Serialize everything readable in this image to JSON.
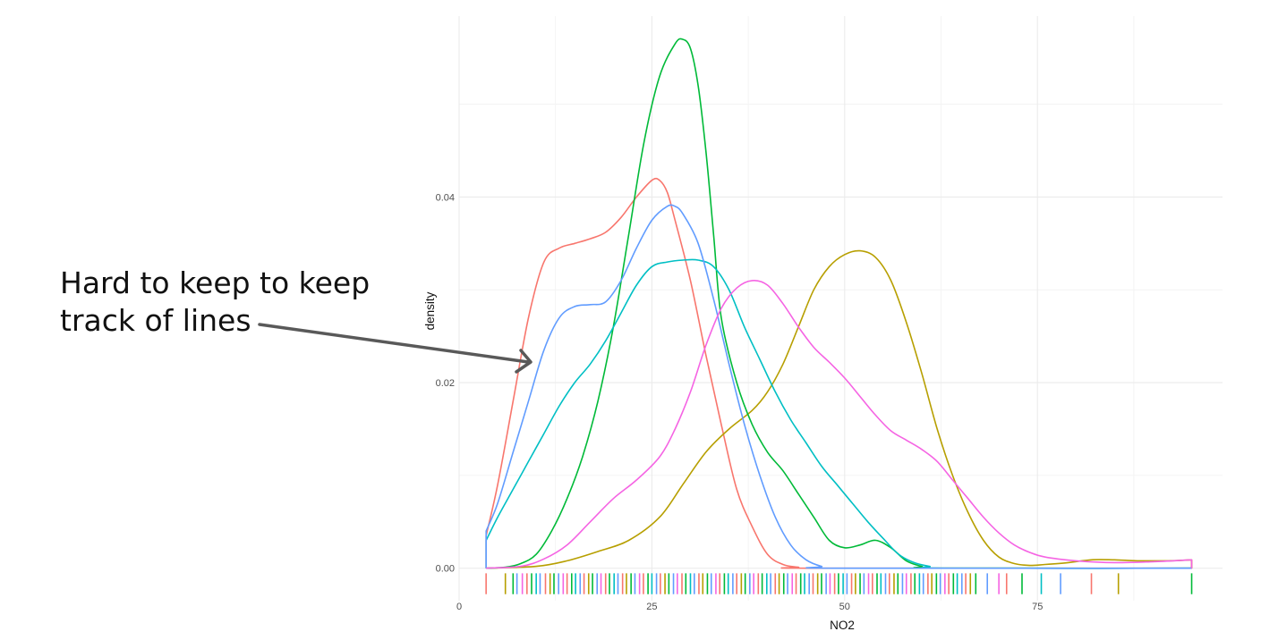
{
  "annotation": {
    "lines": [
      "Hard to keep to keep",
      "track of lines"
    ],
    "arrow_color": "#595959"
  },
  "chart_data": {
    "type": "line",
    "kind": "density",
    "xlabel": "NO2",
    "ylabel": "density",
    "xlim": [
      0,
      99
    ],
    "ylim": [
      -0.0035,
      0.0595
    ],
    "x_ticks": [
      0,
      25,
      50,
      75
    ],
    "x_tick_labels": [
      "0",
      "25",
      "50",
      "75"
    ],
    "y_ticks": [
      0.0,
      0.02,
      0.04
    ],
    "y_tick_labels": [
      "0.00",
      "0.02",
      "0.04"
    ],
    "grid": true,
    "legend": "none",
    "rug": true,
    "series": [
      {
        "color": "#F8766D",
        "points": [
          [
            3.5,
            0
          ],
          [
            3.5,
            0.0035
          ],
          [
            5,
            0.009
          ],
          [
            7,
            0.018
          ],
          [
            9,
            0.027
          ],
          [
            11,
            0.033
          ],
          [
            13,
            0.0345
          ],
          [
            15,
            0.035
          ],
          [
            17,
            0.0355
          ],
          [
            19,
            0.0362
          ],
          [
            21,
            0.0378
          ],
          [
            23,
            0.04
          ],
          [
            25,
            0.0418
          ],
          [
            26,
            0.0418
          ],
          [
            27,
            0.0405
          ],
          [
            28,
            0.0375
          ],
          [
            30,
            0.031
          ],
          [
            32,
            0.023
          ],
          [
            34,
            0.0155
          ],
          [
            36,
            0.0085
          ],
          [
            38,
            0.0045
          ],
          [
            40,
            0.0015
          ],
          [
            42,
            0.0004
          ],
          [
            44,
            0.0001
          ],
          [
            46,
            0
          ],
          [
            95,
            0
          ],
          [
            95,
            0.0008
          ]
        ]
      },
      {
        "color": "#B79F00",
        "points": [
          [
            3.5,
            0
          ],
          [
            10,
            0.0002
          ],
          [
            14,
            0.0008
          ],
          [
            18,
            0.0018
          ],
          [
            22,
            0.003
          ],
          [
            26,
            0.0055
          ],
          [
            29,
            0.009
          ],
          [
            32,
            0.0125
          ],
          [
            35,
            0.015
          ],
          [
            38,
            0.017
          ],
          [
            40,
            0.019
          ],
          [
            42,
            0.022
          ],
          [
            44,
            0.026
          ],
          [
            46,
            0.03
          ],
          [
            48,
            0.0325
          ],
          [
            50,
            0.0338
          ],
          [
            52,
            0.0342
          ],
          [
            54,
            0.0335
          ],
          [
            56,
            0.031
          ],
          [
            58,
            0.0265
          ],
          [
            60,
            0.021
          ],
          [
            62,
            0.015
          ],
          [
            64,
            0.01
          ],
          [
            66,
            0.006
          ],
          [
            68,
            0.003
          ],
          [
            70,
            0.0012
          ],
          [
            72,
            0.0005
          ],
          [
            74,
            0.0003
          ],
          [
            76,
            0.0004
          ],
          [
            79,
            0.0006
          ],
          [
            82,
            0.0009
          ],
          [
            85,
            0.0009
          ],
          [
            88,
            0.0008
          ],
          [
            92,
            0.0008
          ],
          [
            95,
            0.0009
          ],
          [
            95,
            0
          ]
        ]
      },
      {
        "color": "#00BA38",
        "points": [
          [
            3.5,
            0
          ],
          [
            6,
            0.0001
          ],
          [
            8,
            0.0005
          ],
          [
            10,
            0.0015
          ],
          [
            12,
            0.004
          ],
          [
            14,
            0.0075
          ],
          [
            16,
            0.012
          ],
          [
            18,
            0.018
          ],
          [
            20,
            0.026
          ],
          [
            22,
            0.036
          ],
          [
            24,
            0.046
          ],
          [
            26,
            0.053
          ],
          [
            28,
            0.0565
          ],
          [
            29,
            0.057
          ],
          [
            30,
            0.056
          ],
          [
            31,
            0.052
          ],
          [
            32,
            0.045
          ],
          [
            33,
            0.036
          ],
          [
            34,
            0.027
          ],
          [
            36,
            0.02
          ],
          [
            38,
            0.0155
          ],
          [
            40,
            0.0125
          ],
          [
            42,
            0.0105
          ],
          [
            44,
            0.008
          ],
          [
            46,
            0.0055
          ],
          [
            48,
            0.003
          ],
          [
            50,
            0.0022
          ],
          [
            52,
            0.0025
          ],
          [
            54,
            0.003
          ],
          [
            56,
            0.0022
          ],
          [
            58,
            0.0008
          ],
          [
            60,
            0.0002
          ],
          [
            62,
            0
          ],
          [
            95,
            0
          ]
        ]
      },
      {
        "color": "#00BFC4",
        "points": [
          [
            3.5,
            0
          ],
          [
            3.5,
            0.003
          ],
          [
            5,
            0.0055
          ],
          [
            7,
            0.0085
          ],
          [
            9,
            0.0115
          ],
          [
            11,
            0.0145
          ],
          [
            13,
            0.0175
          ],
          [
            15,
            0.02
          ],
          [
            17,
            0.022
          ],
          [
            19,
            0.0245
          ],
          [
            21,
            0.0275
          ],
          [
            23,
            0.0305
          ],
          [
            25,
            0.0325
          ],
          [
            27,
            0.033
          ],
          [
            29,
            0.0332
          ],
          [
            31,
            0.0332
          ],
          [
            33,
            0.0325
          ],
          [
            35,
            0.03
          ],
          [
            37,
            0.026
          ],
          [
            39,
            0.0225
          ],
          [
            41,
            0.019
          ],
          [
            43,
            0.016
          ],
          [
            45,
            0.0135
          ],
          [
            47,
            0.011
          ],
          [
            49,
            0.009
          ],
          [
            51,
            0.007
          ],
          [
            53,
            0.005
          ],
          [
            55,
            0.0032
          ],
          [
            57,
            0.0015
          ],
          [
            59,
            0.0006
          ],
          [
            61,
            0.0002
          ],
          [
            63,
            0
          ],
          [
            95,
            0
          ]
        ]
      },
      {
        "color": "#619CFF",
        "points": [
          [
            3.5,
            0
          ],
          [
            3.5,
            0.004
          ],
          [
            5,
            0.007
          ],
          [
            7,
            0.0125
          ],
          [
            9,
            0.018
          ],
          [
            11,
            0.0235
          ],
          [
            13,
            0.027
          ],
          [
            15,
            0.0282
          ],
          [
            17,
            0.0284
          ],
          [
            19,
            0.0287
          ],
          [
            21,
            0.031
          ],
          [
            23,
            0.0345
          ],
          [
            25,
            0.0375
          ],
          [
            27,
            0.039
          ],
          [
            28,
            0.039
          ],
          [
            29,
            0.0382
          ],
          [
            31,
            0.035
          ],
          [
            33,
            0.029
          ],
          [
            35,
            0.022
          ],
          [
            37,
            0.0155
          ],
          [
            39,
            0.01
          ],
          [
            41,
            0.0055
          ],
          [
            43,
            0.0025
          ],
          [
            45,
            0.0009
          ],
          [
            47,
            0.0002
          ],
          [
            49,
            0
          ],
          [
            95,
            0
          ]
        ]
      },
      {
        "color": "#F564E3",
        "points": [
          [
            3.5,
            0
          ],
          [
            8,
            0.0002
          ],
          [
            11,
            0.001
          ],
          [
            14,
            0.0025
          ],
          [
            17,
            0.005
          ],
          [
            20,
            0.0075
          ],
          [
            23,
            0.0095
          ],
          [
            26,
            0.012
          ],
          [
            28,
            0.015
          ],
          [
            30,
            0.019
          ],
          [
            32,
            0.024
          ],
          [
            34,
            0.028
          ],
          [
            36,
            0.0302
          ],
          [
            38,
            0.031
          ],
          [
            40,
            0.0305
          ],
          [
            42,
            0.0285
          ],
          [
            44,
            0.026
          ],
          [
            46,
            0.0238
          ],
          [
            48,
            0.0222
          ],
          [
            50,
            0.0205
          ],
          [
            52,
            0.0185
          ],
          [
            54,
            0.0165
          ],
          [
            56,
            0.0148
          ],
          [
            58,
            0.0138
          ],
          [
            60,
            0.0128
          ],
          [
            62,
            0.0115
          ],
          [
            64,
            0.0095
          ],
          [
            66,
            0.0075
          ],
          [
            68,
            0.0055
          ],
          [
            70,
            0.0038
          ],
          [
            72,
            0.0025
          ],
          [
            74,
            0.0017
          ],
          [
            76,
            0.0012
          ],
          [
            80,
            0.0008
          ],
          [
            85,
            0.0006
          ],
          [
            90,
            0.0007
          ],
          [
            95,
            0.0009
          ],
          [
            95,
            0
          ]
        ]
      }
    ],
    "rug_palette": [
      "#F8766D",
      "#B79F00",
      "#00BA38",
      "#00BFC4",
      "#619CFF",
      "#F564E3"
    ],
    "rug_x": [
      3.5,
      6,
      7,
      7.5,
      8.2,
      8.8,
      9.4,
      10,
      10.5,
      11.2,
      11.8,
      12.3,
      12.9,
      13.5,
      14,
      14.6,
      15.1,
      15.7,
      16.2,
      16.8,
      17.3,
      17.9,
      18.4,
      19,
      19.5,
      20.1,
      20.6,
      21.2,
      21.7,
      22.3,
      22.8,
      23.4,
      23.9,
      24.5,
      25,
      25.6,
      26.1,
      26.7,
      27.2,
      27.8,
      28.3,
      28.9,
      29.4,
      30,
      30.5,
      31.1,
      31.6,
      32.2,
      32.7,
      33.3,
      33.8,
      34.4,
      34.9,
      35.5,
      36,
      36.6,
      37.1,
      37.7,
      38.2,
      38.8,
      39.3,
      39.9,
      40.4,
      41,
      41.5,
      42.1,
      42.6,
      43.2,
      43.7,
      44.3,
      44.8,
      45.4,
      45.9,
      46.5,
      47,
      47.6,
      48.1,
      48.7,
      49.2,
      49.8,
      50.3,
      50.9,
      51.4,
      52,
      52.5,
      53.1,
      53.6,
      54.2,
      54.7,
      55.3,
      55.8,
      56.4,
      56.9,
      57.5,
      58,
      58.6,
      59.1,
      59.7,
      60.2,
      60.8,
      61.3,
      61.9,
      62.4,
      63,
      63.5,
      64.1,
      64.6,
      65.2,
      65.7,
      66.3,
      67,
      68.5,
      70,
      71,
      73,
      75.5,
      78,
      82,
      85.5,
      95
    ]
  }
}
